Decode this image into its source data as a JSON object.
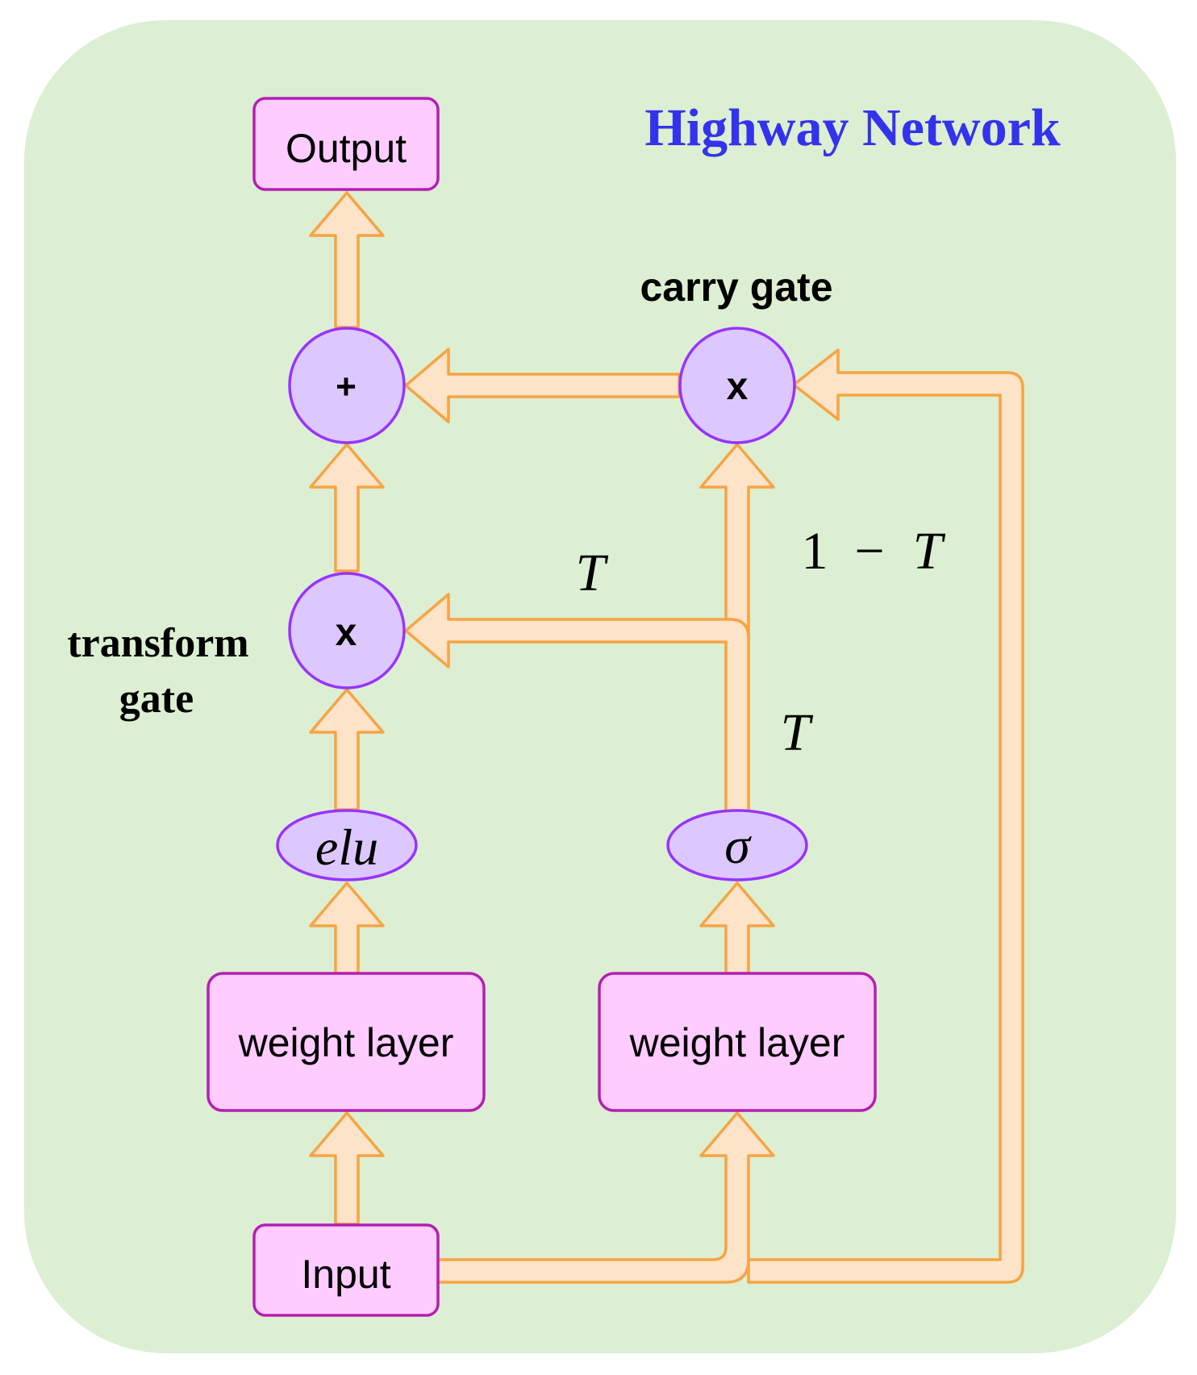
{
  "title": "Highway Network",
  "nodes": {
    "output": "Output",
    "input": "Input",
    "weight_layer_left": "weight layer",
    "weight_layer_right": "weight layer",
    "activation_left": "elu",
    "activation_right": "σ",
    "sum_op": "+",
    "transform_mult_op": "x",
    "carry_mult_op": "x"
  },
  "labels": {
    "carry_gate": "carry gate",
    "transform_gate_line1": "transform",
    "transform_gate_line2": "gate",
    "t_top": "T",
    "t_side": "T",
    "one_minus_t_one": "1",
    "one_minus_t_minus": "−",
    "one_minus_t_t": "T"
  },
  "colors": {
    "background_panel": "#dcefd2",
    "box_fill": "#ffccff",
    "box_stroke": "#b31fb3",
    "node_fill": "#dcc8ff",
    "node_stroke": "#9933ff",
    "arrow_fill": "#fde3c8",
    "arrow_stroke": "#f7a443",
    "title_color": "#3333ee"
  }
}
